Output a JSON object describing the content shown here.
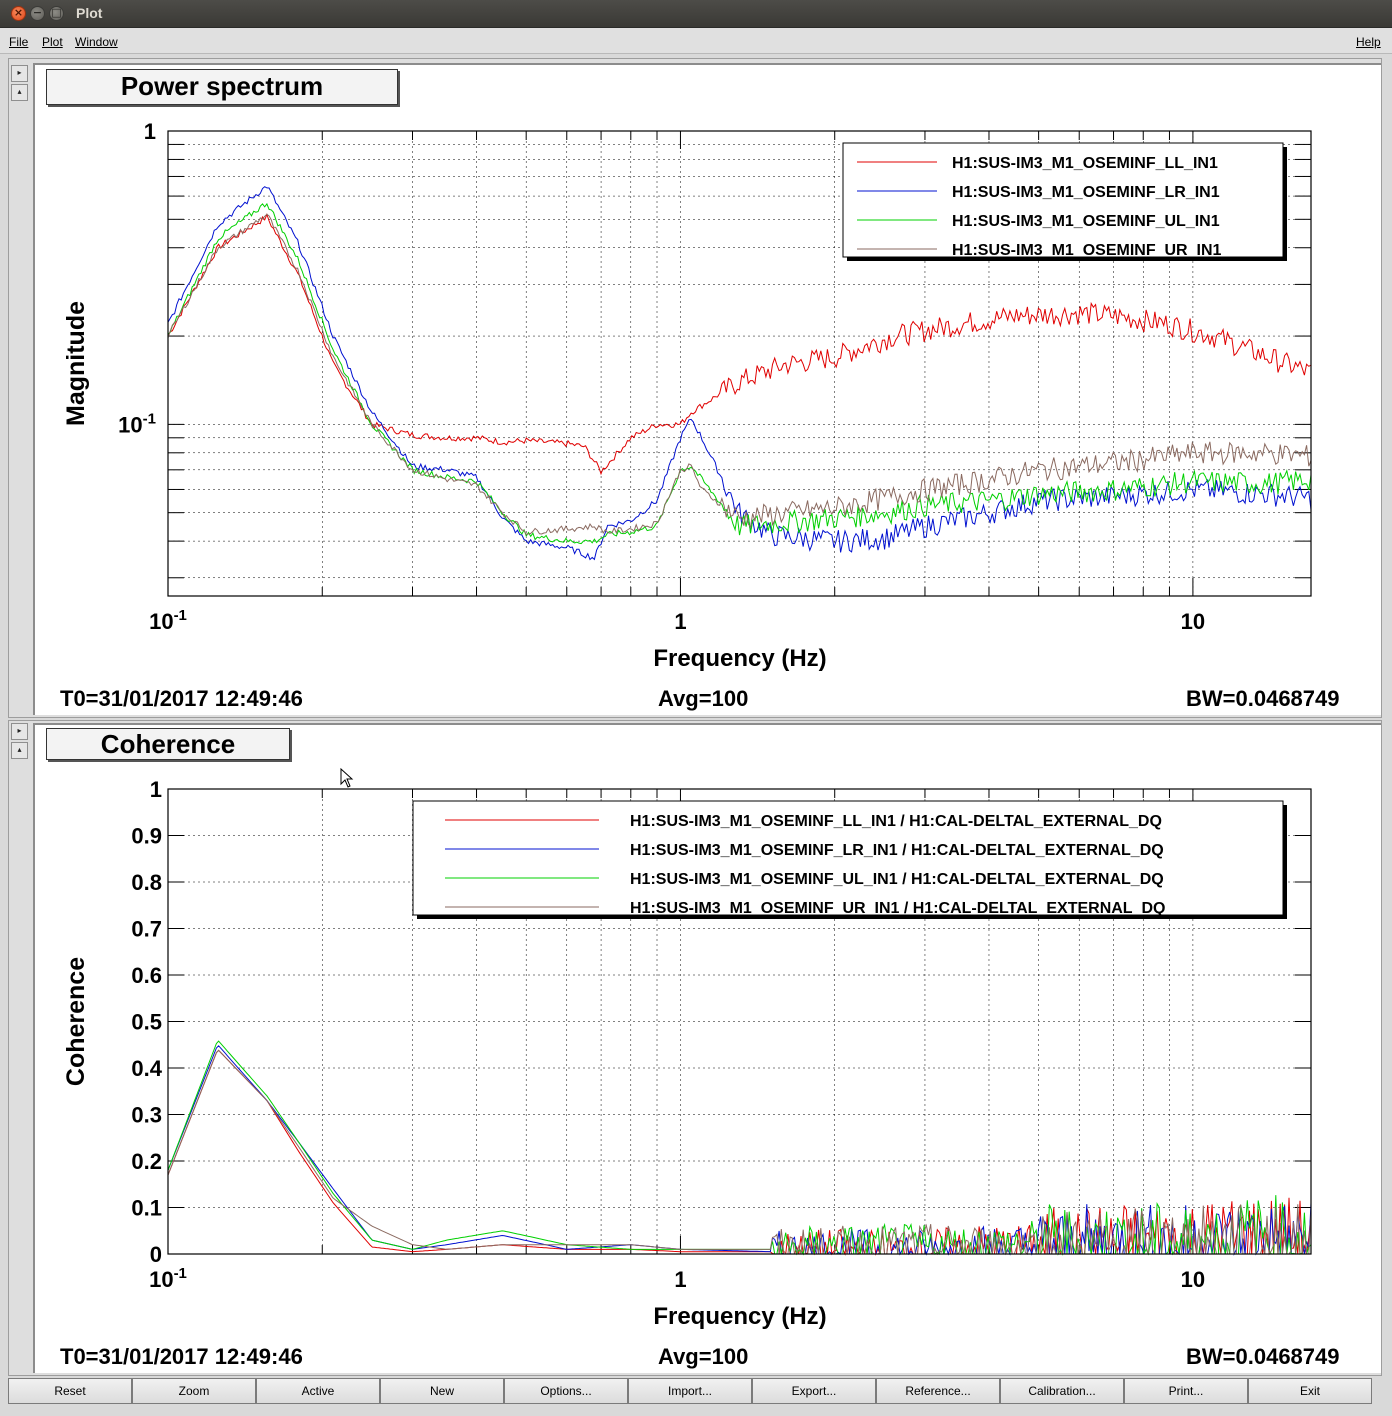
{
  "window": {
    "title": "Plot",
    "close_glyph": "×",
    "minimize_glyph": "−",
    "maximize_glyph": "□"
  },
  "menu": {
    "file": "File",
    "plot": "Plot",
    "window": "Window",
    "help": "Help"
  },
  "side_buttons": {
    "up": "▸",
    "down": "▴"
  },
  "top_panel": {
    "title": "Power spectrum",
    "t0": "T0=31/01/2017 12:49:46",
    "avg": "Avg=100",
    "bw": "BW=0.0468749"
  },
  "bottom_panel": {
    "title": "Coherence",
    "t0": "T0=31/01/2017 12:49:46",
    "avg": "Avg=100",
    "bw": "BW=0.0468749"
  },
  "toolbar": [
    "Reset",
    "Zoom",
    "Active",
    "New",
    "Options...",
    "Import...",
    "Export...",
    "Reference...",
    "Calibration...",
    "Print...",
    "Exit"
  ],
  "colors": {
    "LL": "#e00000",
    "LR": "#0010d0",
    "UL": "#00d000",
    "UR": "#8a6a60"
  },
  "chart_data": [
    {
      "type": "line",
      "title": "Power spectrum",
      "xlabel": "Frequency (Hz)",
      "ylabel": "Magnitude",
      "xscale": "log",
      "yscale": "log",
      "xlim": [
        0.1,
        17
      ],
      "ylim": [
        0.026,
        1
      ],
      "xticklabels": [
        "10-1",
        "1",
        "10"
      ],
      "yticklabels": [
        "1",
        "10-1"
      ],
      "grid": true,
      "legend_position": "top-right",
      "series": [
        {
          "name": "H1:SUS-IM3_M1_OSEMINF_LL_IN1",
          "color": "#e00000",
          "x": [
            0.1,
            0.125,
            0.156,
            0.18,
            0.21,
            0.25,
            0.3,
            0.35,
            0.4,
            0.45,
            0.5,
            0.6,
            0.65,
            0.7,
            0.8,
            0.9,
            1.0,
            1.05,
            1.3,
            1.6,
            2.0,
            2.6,
            3.5,
            4.5,
            6.0,
            7.0,
            9.0,
            11.0,
            14.0,
            17.0
          ],
          "y": [
            0.2,
            0.4,
            0.51,
            0.32,
            0.16,
            0.1,
            0.092,
            0.09,
            0.09,
            0.087,
            0.088,
            0.086,
            0.084,
            0.069,
            0.09,
            0.1,
            0.1,
            0.11,
            0.14,
            0.16,
            0.17,
            0.2,
            0.22,
            0.235,
            0.24,
            0.235,
            0.22,
            0.2,
            0.17,
            0.15
          ]
        },
        {
          "name": "H1:SUS-IM3_M1_OSEMINF_LR_IN1",
          "color": "#0010d0",
          "x": [
            0.1,
            0.125,
            0.156,
            0.18,
            0.21,
            0.25,
            0.3,
            0.35,
            0.4,
            0.45,
            0.5,
            0.6,
            0.68,
            0.72,
            0.8,
            0.9,
            1.0,
            1.05,
            1.1,
            1.3,
            1.5,
            2.0,
            2.5,
            3.0,
            4.0,
            5.0,
            7.0,
            10.0,
            14.0,
            17.0
          ],
          "y": [
            0.22,
            0.48,
            0.65,
            0.41,
            0.2,
            0.11,
            0.072,
            0.07,
            0.066,
            0.048,
            0.04,
            0.038,
            0.035,
            0.045,
            0.047,
            0.055,
            0.09,
            0.105,
            0.09,
            0.05,
            0.042,
            0.04,
            0.041,
            0.045,
            0.05,
            0.055,
            0.057,
            0.06,
            0.058,
            0.056
          ]
        },
        {
          "name": "H1:SUS-IM3_M1_OSEMINF_UL_IN1",
          "color": "#00d000",
          "x": [
            0.1,
            0.125,
            0.156,
            0.18,
            0.21,
            0.25,
            0.3,
            0.35,
            0.4,
            0.45,
            0.5,
            0.6,
            0.68,
            0.72,
            0.8,
            0.9,
            1.0,
            1.05,
            1.1,
            1.3,
            1.5,
            2.0,
            2.5,
            3.0,
            4.0,
            5.0,
            7.0,
            10.0,
            14.0,
            17.0
          ],
          "y": [
            0.2,
            0.43,
            0.57,
            0.36,
            0.18,
            0.1,
            0.07,
            0.066,
            0.064,
            0.05,
            0.042,
            0.04,
            0.04,
            0.042,
            0.043,
            0.045,
            0.07,
            0.072,
            0.065,
            0.045,
            0.046,
            0.048,
            0.05,
            0.053,
            0.055,
            0.058,
            0.06,
            0.064,
            0.063,
            0.065
          ]
        },
        {
          "name": "H1:SUS-IM3_M1_OSEMINF_UR_IN1",
          "color": "#8a6a60",
          "x": [
            0.1,
            0.125,
            0.156,
            0.18,
            0.21,
            0.25,
            0.3,
            0.35,
            0.4,
            0.45,
            0.5,
            0.6,
            0.68,
            0.72,
            0.8,
            0.9,
            1.0,
            1.05,
            1.1,
            1.3,
            1.6,
            2.0,
            2.5,
            3.0,
            4.0,
            5.0,
            7.0,
            10.0,
            14.0,
            17.0
          ],
          "y": [
            0.2,
            0.4,
            0.52,
            0.33,
            0.17,
            0.1,
            0.07,
            0.065,
            0.062,
            0.05,
            0.043,
            0.044,
            0.045,
            0.043,
            0.044,
            0.046,
            0.07,
            0.072,
            0.06,
            0.048,
            0.05,
            0.052,
            0.056,
            0.06,
            0.065,
            0.07,
            0.074,
            0.08,
            0.08,
            0.078
          ]
        }
      ]
    },
    {
      "type": "line",
      "title": "Coherence",
      "xlabel": "Frequency (Hz)",
      "ylabel": "Coherence",
      "xscale": "log",
      "xlim": [
        0.1,
        17
      ],
      "ylim": [
        0,
        1
      ],
      "xticklabels": [
        "10-1",
        "1",
        "10"
      ],
      "yticklabels": [
        "0",
        "0.1",
        "0.2",
        "0.3",
        "0.4",
        "0.5",
        "0.6",
        "0.7",
        "0.8",
        "0.9",
        "1"
      ],
      "grid": true,
      "legend_position": "top-right",
      "series": [
        {
          "name": "H1:SUS-IM3_M1_OSEMINF_LL_IN1 / H1:CAL-DELTAL_EXTERNAL_DQ",
          "color": "#e00000",
          "x": [
            0.1,
            0.125,
            0.156,
            0.18,
            0.21,
            0.25,
            0.3,
            0.35,
            0.45,
            0.6,
            0.8,
            1.0,
            1.5,
            2.0,
            3.0,
            4.0,
            5.0,
            7.0,
            10.0,
            14.0,
            17.0
          ],
          "y": [
            0.17,
            0.44,
            0.33,
            0.22,
            0.11,
            0.015,
            0.005,
            0.01,
            0.02,
            0.01,
            0.01,
            0.005,
            0.005,
            0.01,
            0.01,
            0.02,
            0.02,
            0.03,
            0.04,
            0.05,
            0.04
          ]
        },
        {
          "name": "H1:SUS-IM3_M1_OSEMINF_LR_IN1 / H1:CAL-DELTAL_EXTERNAL_DQ",
          "color": "#0010d0",
          "x": [
            0.1,
            0.125,
            0.156,
            0.18,
            0.21,
            0.25,
            0.3,
            0.35,
            0.45,
            0.6,
            0.8,
            1.0,
            1.5,
            2.0,
            3.0,
            4.0,
            5.0,
            7.0,
            10.0,
            14.0,
            17.0
          ],
          "y": [
            0.18,
            0.45,
            0.33,
            0.24,
            0.14,
            0.03,
            0.01,
            0.02,
            0.04,
            0.01,
            0.02,
            0.01,
            0.005,
            0.01,
            0.01,
            0.02,
            0.02,
            0.03,
            0.03,
            0.04,
            0.035
          ]
        },
        {
          "name": "H1:SUS-IM3_M1_OSEMINF_UL_IN1 / H1:CAL-DELTAL_EXTERNAL_DQ",
          "color": "#00d000",
          "x": [
            0.1,
            0.125,
            0.156,
            0.18,
            0.21,
            0.25,
            0.3,
            0.35,
            0.45,
            0.6,
            0.8,
            1.0,
            1.5,
            2.0,
            3.0,
            4.0,
            5.0,
            7.0,
            10.0,
            14.0,
            17.0
          ],
          "y": [
            0.18,
            0.46,
            0.34,
            0.24,
            0.13,
            0.03,
            0.01,
            0.03,
            0.05,
            0.02,
            0.01,
            0.01,
            0.01,
            0.02,
            0.02,
            0.02,
            0.03,
            0.03,
            0.03,
            0.05,
            0.04
          ]
        },
        {
          "name": "H1:SUS-IM3_M1_OSEMINF_UR_IN1 / H1:CAL-DELTAL_EXTERNAL_DQ",
          "color": "#8a6a60",
          "x": [
            0.1,
            0.125,
            0.156,
            0.18,
            0.21,
            0.25,
            0.3,
            0.35,
            0.45,
            0.6,
            0.8,
            1.0,
            1.5,
            2.0,
            3.0,
            4.0,
            5.0,
            7.0,
            10.0,
            14.0,
            17.0
          ],
          "y": [
            0.17,
            0.44,
            0.33,
            0.23,
            0.12,
            0.06,
            0.02,
            0.01,
            0.02,
            0.02,
            0.02,
            0.01,
            0.01,
            0.015,
            0.02,
            0.02,
            0.02,
            0.02,
            0.025,
            0.03,
            0.03
          ]
        }
      ]
    }
  ]
}
